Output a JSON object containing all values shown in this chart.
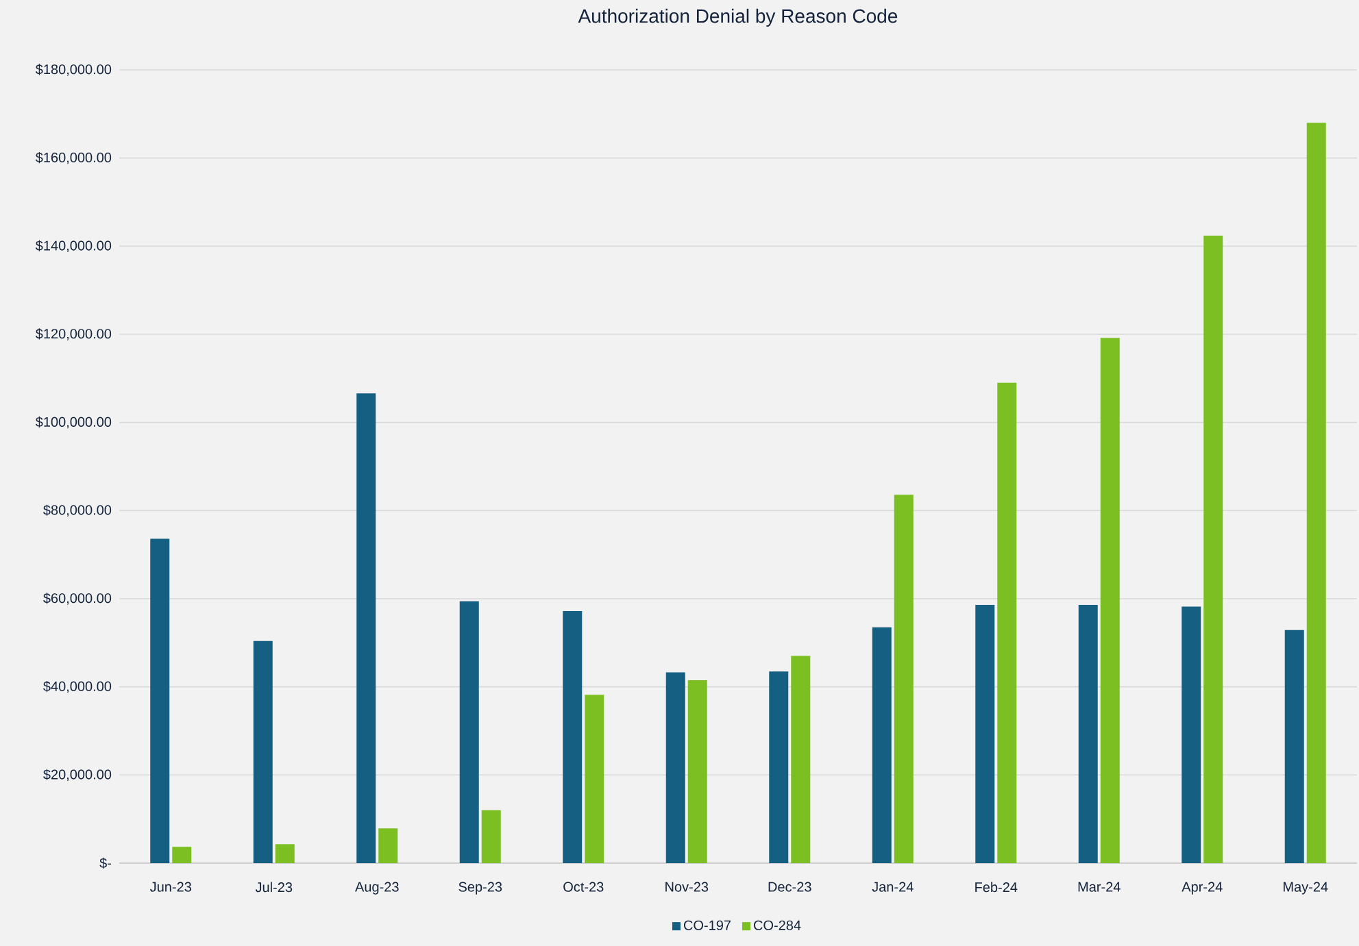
{
  "chart_data": {
    "type": "bar",
    "title": "Authorization Denial by Reason Code",
    "categories": [
      "Jun-23",
      "Jul-23",
      "Aug-23",
      "Sep-23",
      "Oct-23",
      "Nov-23",
      "Dec-23",
      "Jan-24",
      "Feb-24",
      "Mar-24",
      "Apr-24",
      "May-24"
    ],
    "series": [
      {
        "name": "CO-197",
        "color": "#156082",
        "values": [
          73600,
          50400,
          106600,
          59400,
          57200,
          43300,
          43500,
          53500,
          58600,
          58600,
          58200,
          52900
        ]
      },
      {
        "name": "CO-284",
        "color": "#7bbf23",
        "values": [
          3700,
          4300,
          7900,
          12000,
          38200,
          41500,
          47000,
          83600,
          109000,
          119200,
          142400,
          168000
        ]
      }
    ],
    "ylim": [
      0,
      180000
    ],
    "yticks": [
      {
        "value": 0,
        "label": "$-"
      },
      {
        "value": 20000,
        "label": "$20,000.00"
      },
      {
        "value": 40000,
        "label": "$40,000.00"
      },
      {
        "value": 60000,
        "label": "$60,000.00"
      },
      {
        "value": 80000,
        "label": "$80,000.00"
      },
      {
        "value": 100000,
        "label": "$100,000.00"
      },
      {
        "value": 120000,
        "label": "$120,000.00"
      },
      {
        "value": 140000,
        "label": "$140,000.00"
      },
      {
        "value": 160000,
        "label": "$160,000.00"
      },
      {
        "value": 180000,
        "label": "$180,000.00"
      }
    ],
    "grid": "y",
    "legend": "bottom"
  }
}
